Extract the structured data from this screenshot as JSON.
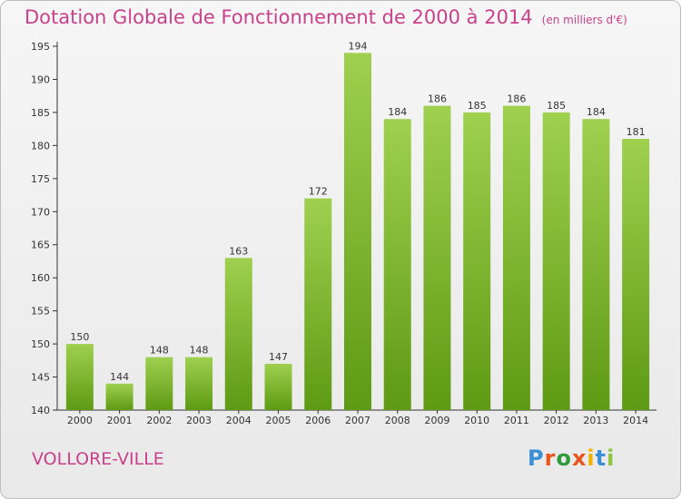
{
  "chart_data": {
    "type": "bar",
    "title": "Dotation Globale de Fonctionnement de 2000 à 2014",
    "unit_note": "(en milliers d'€)",
    "categories": [
      "2000",
      "2001",
      "2002",
      "2003",
      "2004",
      "2005",
      "2006",
      "2007",
      "2008",
      "2009",
      "2010",
      "2011",
      "2012",
      "2013",
      "2014"
    ],
    "values": [
      150,
      144,
      148,
      148,
      163,
      147,
      172,
      194,
      184,
      186,
      185,
      186,
      185,
      184,
      181
    ],
    "ylim": [
      140,
      195
    ],
    "yticks": [
      140,
      145,
      150,
      155,
      160,
      165,
      170,
      175,
      180,
      185,
      190,
      195
    ],
    "grid": false,
    "bar_color_top": "#9fd04f",
    "bar_color_bottom": "#5e9a14"
  },
  "commune": "VOLLORE-VILLE",
  "logo": {
    "letters": [
      "P",
      "r",
      "o",
      "x",
      "i",
      "t",
      "i"
    ],
    "colors": [
      "#3a8fd6",
      "#e8561e",
      "#2e9a3a",
      "#e8561e",
      "#f0b400",
      "#3a8fd6",
      "#8cc43c"
    ]
  }
}
